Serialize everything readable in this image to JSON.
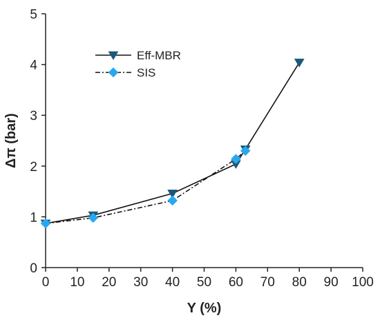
{
  "chart_data": {
    "type": "line",
    "xlabel": "Y (%)",
    "ylabel": "Δπ (bar)",
    "xlim": [
      0,
      100
    ],
    "ylim": [
      0,
      5
    ],
    "x_ticks": [
      0,
      10,
      20,
      30,
      40,
      50,
      60,
      70,
      80,
      90,
      100
    ],
    "y_ticks": [
      0,
      1,
      2,
      3,
      4,
      5
    ],
    "x_tick_labels": [
      "0",
      "10",
      "20",
      "30",
      "40",
      "50",
      "60",
      "70",
      "80",
      "90",
      "100"
    ],
    "y_tick_labels": [
      "0",
      "1",
      "2",
      "3",
      "4",
      "5"
    ],
    "grid": false,
    "legend_position": "top-left",
    "series": [
      {
        "name": "Eff-MBR",
        "line_style": "solid",
        "marker": "down-triangle",
        "color": "#1a5a78",
        "line_color": "#111111",
        "x": [
          0,
          15,
          40,
          60,
          63,
          80
        ],
        "y": [
          0.87,
          1.03,
          1.46,
          2.04,
          2.33,
          4.04
        ]
      },
      {
        "name": "SIS",
        "line_style": "dash-dot",
        "marker": "diamond",
        "color": "#29a8f0",
        "line_color": "#111111",
        "x": [
          0,
          15,
          40,
          60,
          63
        ],
        "y": [
          0.87,
          0.98,
          1.32,
          2.14,
          2.3
        ]
      }
    ]
  }
}
